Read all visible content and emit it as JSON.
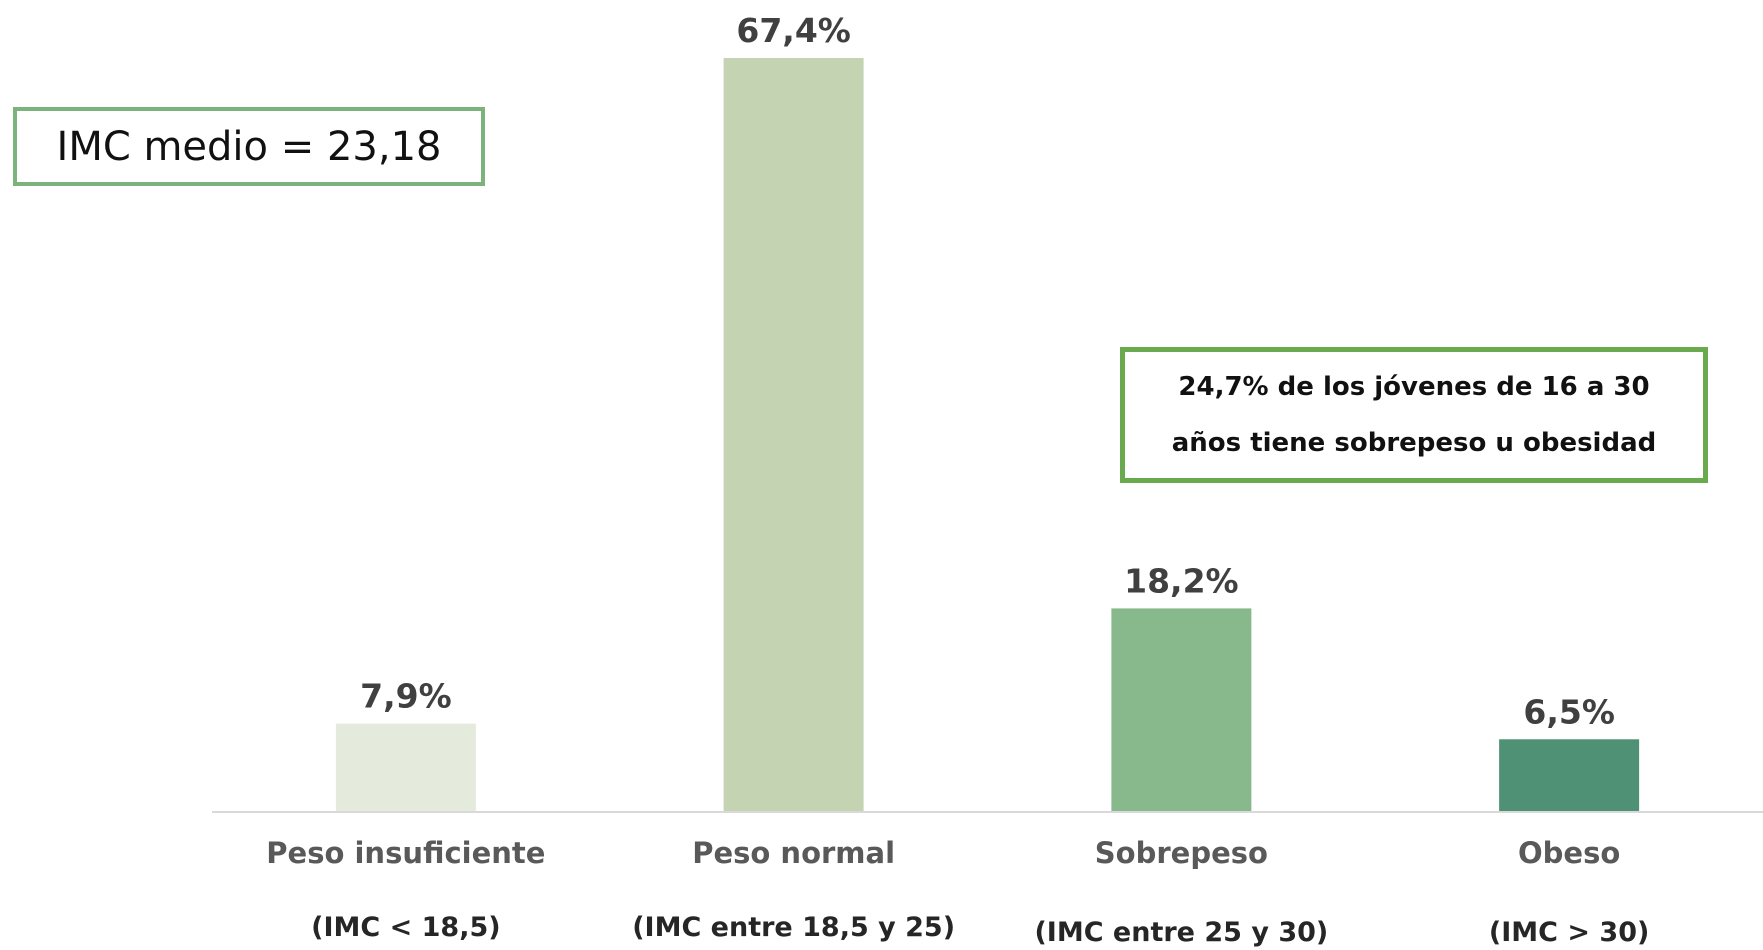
{
  "chart_data": {
    "type": "bar",
    "categories": [
      "Peso insuficiente",
      "Peso normal",
      "Sobrepeso",
      "Obeso"
    ],
    "subcategories": [
      "(IMC < 18,5)",
      "(IMC entre 18,5 y 25)",
      "(IMC entre 25 y 30)",
      "(IMC > 30)"
    ],
    "values": [
      7.9,
      67.4,
      18.2,
      6.5
    ],
    "data_labels": [
      "7,9%",
      "67,4%",
      "18,2%",
      "6,5%"
    ],
    "colors": [
      "#e4ebdc",
      "#c4d4b3",
      "#88b98d",
      "#4f9174"
    ],
    "ylim": [
      0,
      70
    ],
    "grid": false,
    "title": "",
    "xlabel": "",
    "ylabel": ""
  },
  "annotations": {
    "mean_bmi": "IMC medio = 23,18",
    "summary": "24,7% de los jóvenes de 16 a 30 años tiene sobrepeso u obesidad"
  }
}
